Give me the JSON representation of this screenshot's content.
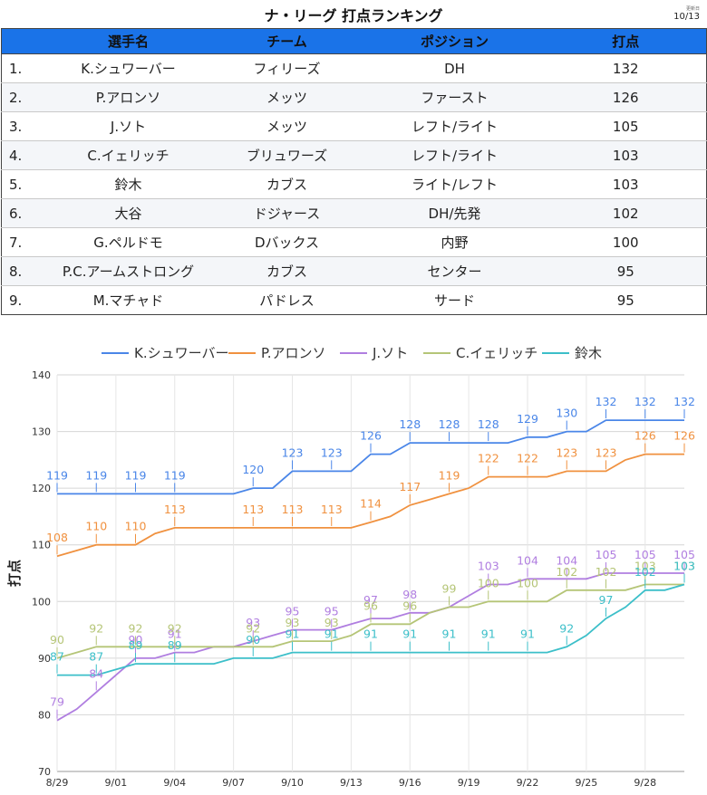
{
  "title": "ナ・リーグ 打点ランキング",
  "updated": {
    "label": "更新日",
    "date": "10/13"
  },
  "table": {
    "headers": [
      "",
      "選手名",
      "チーム",
      "ポジション",
      "打点"
    ],
    "rows": [
      [
        "1.",
        "K.シュワーバー",
        "フィリーズ",
        "DH",
        "132"
      ],
      [
        "2.",
        "P.アロンソ",
        "メッツ",
        "ファースト",
        "126"
      ],
      [
        "3.",
        "J.ソト",
        "メッツ",
        "レフト/ライト",
        "105"
      ],
      [
        "4.",
        "C.イェリッチ",
        "ブリュワーズ",
        "レフト/ライト",
        "103"
      ],
      [
        "5.",
        "鈴木",
        "カブス",
        "ライト/レフト",
        "103"
      ],
      [
        "6.",
        "大谷",
        "ドジャース",
        "DH/先発",
        "102"
      ],
      [
        "7.",
        "G.ペルドモ",
        "Dバックス",
        "内野",
        "100"
      ],
      [
        "8.",
        "P.C.アームストロング",
        "カブス",
        "センター",
        "95"
      ],
      [
        "9.",
        "M.マチャド",
        "パドレス",
        "サード",
        "95"
      ]
    ]
  },
  "chart_data": {
    "type": "line",
    "ylabel": "打点",
    "xlabel": "",
    "ylim": [
      70,
      140
    ],
    "yticks": [
      70,
      80,
      90,
      100,
      110,
      120,
      130,
      140
    ],
    "x": [
      "8/29",
      "8/30",
      "8/31",
      "9/01",
      "9/02",
      "9/03",
      "9/04",
      "9/05",
      "9/06",
      "9/07",
      "9/08",
      "9/09",
      "9/10",
      "9/11",
      "9/12",
      "9/13",
      "9/14",
      "9/15",
      "9/16",
      "9/17",
      "9/18",
      "9/19",
      "9/20",
      "9/21",
      "9/22",
      "9/23",
      "9/24",
      "9/25",
      "9/26",
      "9/27",
      "9/28",
      "9/29",
      "9/30"
    ],
    "xtick_labels": [
      "8/29",
      "9/01",
      "9/04",
      "9/07",
      "9/10",
      "9/13",
      "9/16",
      "9/19",
      "9/22",
      "9/25",
      "9/28"
    ],
    "grid": true,
    "legend_position": "top",
    "series": [
      {
        "name": "K.シュワーバー",
        "color": "#4a86e8",
        "values": [
          119,
          119,
          119,
          119,
          119,
          119,
          119,
          119,
          119,
          119,
          120,
          120,
          123,
          123,
          123,
          123,
          126,
          126,
          128,
          128,
          128,
          128,
          128,
          128,
          129,
          129,
          130,
          130,
          132,
          132,
          132,
          132,
          132
        ],
        "labels": [
          [
            0,
            119
          ],
          [
            2,
            119
          ],
          [
            4,
            119
          ],
          [
            6,
            119
          ],
          [
            10,
            120
          ],
          [
            12,
            123
          ],
          [
            14,
            123
          ],
          [
            16,
            126
          ],
          [
            18,
            128
          ],
          [
            20,
            128
          ],
          [
            22,
            128
          ],
          [
            24,
            129
          ],
          [
            26,
            130
          ],
          [
            28,
            132
          ],
          [
            30,
            132
          ],
          [
            32,
            132
          ]
        ]
      },
      {
        "name": "P.アロンソ",
        "color": "#f0913f",
        "values": [
          108,
          109,
          110,
          110,
          110,
          112,
          113,
          113,
          113,
          113,
          113,
          113,
          113,
          113,
          113,
          113,
          114,
          115,
          117,
          118,
          119,
          120,
          122,
          122,
          122,
          122,
          123,
          123,
          123,
          125,
          126,
          126,
          126
        ],
        "labels": [
          [
            0,
            108
          ],
          [
            2,
            110
          ],
          [
            4,
            110
          ],
          [
            6,
            113
          ],
          [
            10,
            113
          ],
          [
            12,
            113
          ],
          [
            14,
            113
          ],
          [
            16,
            114
          ],
          [
            18,
            117
          ],
          [
            20,
            119
          ],
          [
            22,
            122
          ],
          [
            24,
            122
          ],
          [
            26,
            123
          ],
          [
            28,
            123
          ],
          [
            30,
            126
          ],
          [
            32,
            126
          ]
        ]
      },
      {
        "name": "J.ソト",
        "color": "#b07ee0",
        "values": [
          79,
          81,
          84,
          87,
          90,
          90,
          91,
          91,
          92,
          92,
          93,
          94,
          95,
          95,
          95,
          96,
          97,
          97,
          98,
          98,
          99,
          101,
          103,
          103,
          104,
          104,
          104,
          104,
          105,
          105,
          105,
          105,
          105
        ],
        "labels": [
          [
            0,
            79
          ],
          [
            2,
            84
          ],
          [
            4,
            90
          ],
          [
            6,
            91
          ],
          [
            10,
            93
          ],
          [
            12,
            95
          ],
          [
            14,
            95
          ],
          [
            16,
            97
          ],
          [
            18,
            98
          ],
          [
            22,
            103
          ],
          [
            24,
            104
          ],
          [
            26,
            104
          ],
          [
            28,
            105
          ],
          [
            30,
            105
          ],
          [
            32,
            105
          ]
        ]
      },
      {
        "name": "C.イェリッチ",
        "color": "#b5c577",
        "values": [
          90,
          91,
          92,
          92,
          92,
          92,
          92,
          92,
          92,
          92,
          92,
          92,
          93,
          93,
          93,
          94,
          96,
          96,
          96,
          98,
          99,
          99,
          100,
          100,
          100,
          100,
          102,
          102,
          102,
          102,
          103,
          103,
          103
        ],
        "labels": [
          [
            0,
            90
          ],
          [
            2,
            92
          ],
          [
            4,
            92
          ],
          [
            6,
            92
          ],
          [
            10,
            92
          ],
          [
            12,
            93
          ],
          [
            14,
            93
          ],
          [
            16,
            96
          ],
          [
            18,
            96
          ],
          [
            20,
            99
          ],
          [
            22,
            100
          ],
          [
            24,
            100
          ],
          [
            26,
            102
          ],
          [
            28,
            102
          ],
          [
            30,
            103
          ],
          [
            32,
            103
          ]
        ]
      },
      {
        "name": "鈴木",
        "color": "#3cbfc9",
        "values": [
          87,
          87,
          87,
          88,
          89,
          89,
          89,
          89,
          89,
          90,
          90,
          90,
          91,
          91,
          91,
          91,
          91,
          91,
          91,
          91,
          91,
          91,
          91,
          91,
          91,
          91,
          92,
          94,
          97,
          99,
          102,
          102,
          103
        ],
        "labels": [
          [
            0,
            87
          ],
          [
            2,
            87
          ],
          [
            4,
            89
          ],
          [
            6,
            89
          ],
          [
            10,
            90
          ],
          [
            12,
            91
          ],
          [
            14,
            91
          ],
          [
            16,
            91
          ],
          [
            18,
            91
          ],
          [
            20,
            91
          ],
          [
            22,
            91
          ],
          [
            24,
            91
          ],
          [
            26,
            92
          ],
          [
            28,
            97
          ],
          [
            30,
            102
          ],
          [
            32,
            103
          ]
        ]
      }
    ]
  }
}
